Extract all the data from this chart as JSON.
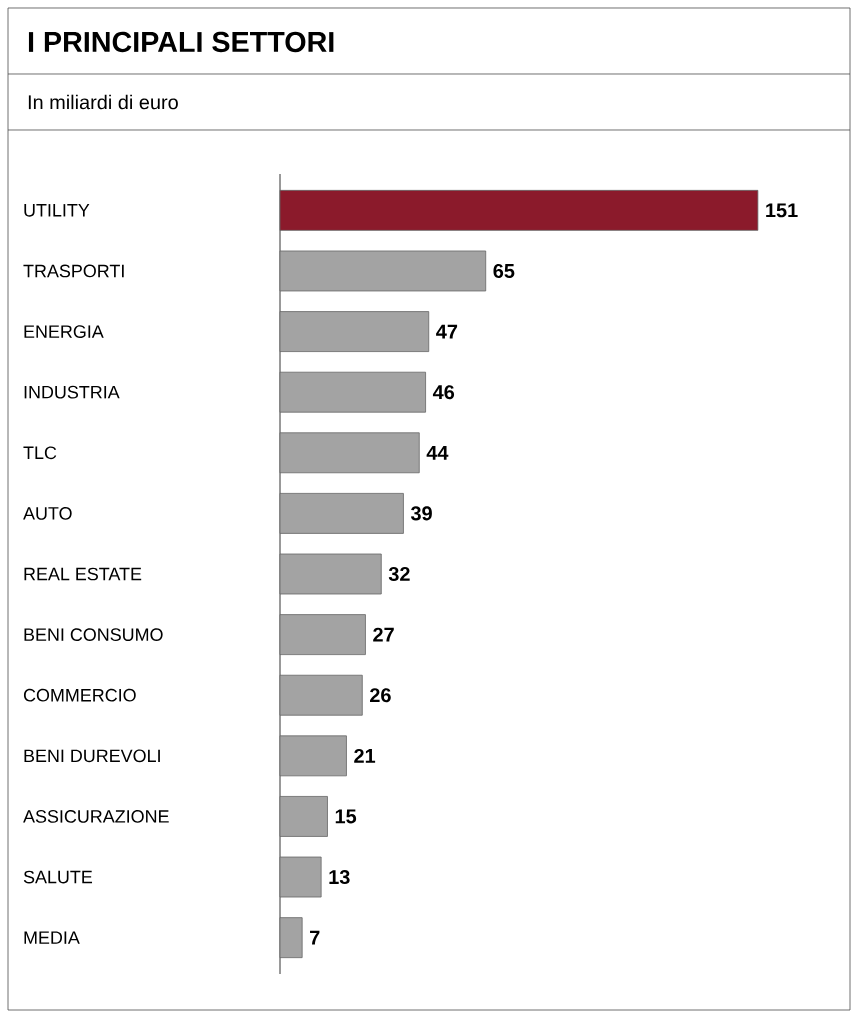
{
  "chart_data": {
    "type": "bar",
    "orientation": "horizontal",
    "title": "I PRINCIPALI SETTORI",
    "subtitle": "In miliardi di euro",
    "categories": [
      "UTILITY",
      "TRASPORTI",
      "ENERGIA",
      "INDUSTRIA",
      "TLC",
      "AUTO",
      "REAL ESTATE",
      "BENI CONSUMO",
      "COMMERCIO",
      "BENI DUREVOLI",
      "ASSICURAZIONE",
      "SALUTE",
      "MEDIA"
    ],
    "values": [
      151,
      65,
      47,
      46,
      44,
      39,
      32,
      27,
      26,
      21,
      15,
      13,
      7
    ],
    "colors": [
      "#8b1a2b",
      "#a3a3a3",
      "#a3a3a3",
      "#a3a3a3",
      "#a3a3a3",
      "#a3a3a3",
      "#a3a3a3",
      "#a3a3a3",
      "#a3a3a3",
      "#a3a3a3",
      "#a3a3a3",
      "#a3a3a3",
      "#a3a3a3"
    ],
    "data_labels": true
  }
}
